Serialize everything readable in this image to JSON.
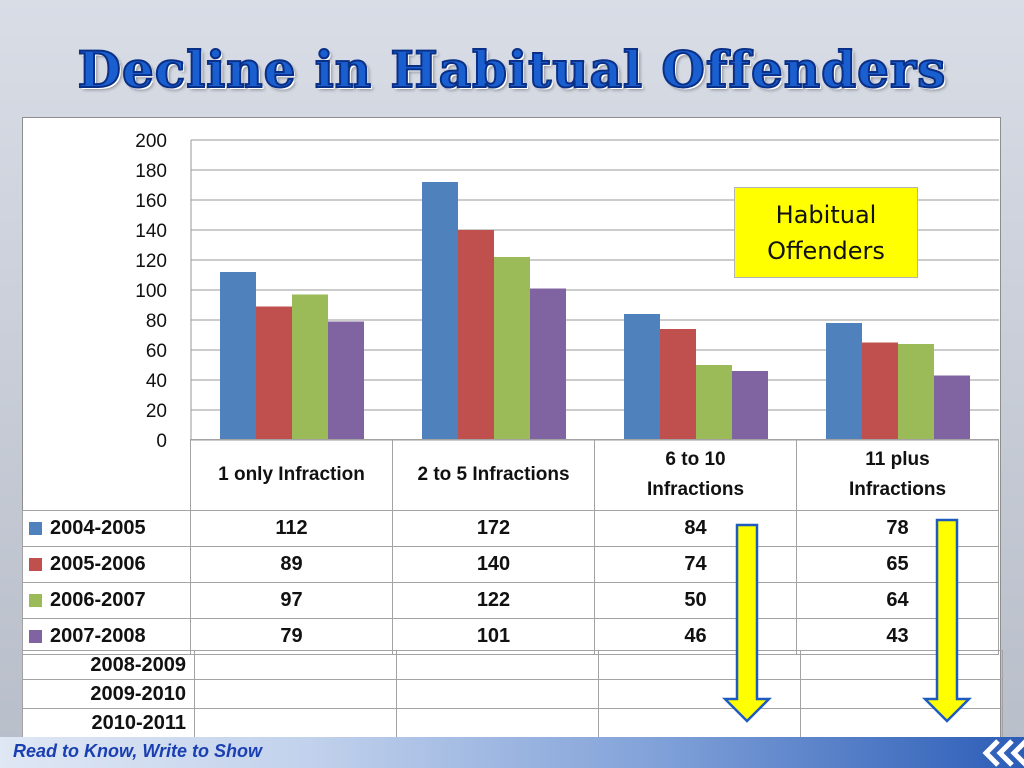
{
  "slide": {
    "title": "Decline in Habitual Offenders",
    "footer": "Read to Know, Write to Show"
  },
  "callout": {
    "line1": "Habitual",
    "line2": "Offenders"
  },
  "colors": {
    "title": "#1a5fd0",
    "callout_bg": "#ffff00",
    "arrow_fill": "#ffff00",
    "arrow_outline": "#1f5bbf",
    "footer_text": "#1a3fb0"
  },
  "icons": [
    "down-arrow-icon",
    "chevron-left-icon"
  ],
  "chart_data": {
    "type": "bar",
    "categories": [
      "1 only Infraction",
      "2 to 5 Infractions",
      "6 to 10 Infractions",
      "11 plus Infractions"
    ],
    "category_lines": [
      [
        "1 only Infraction"
      ],
      [
        "2 to 5 Infractions"
      ],
      [
        "6 to 10",
        "Infractions"
      ],
      [
        "11 plus",
        "Infractions"
      ]
    ],
    "series": [
      {
        "name": "2004-2005",
        "color": "#4f81bd",
        "values": [
          112,
          172,
          84,
          78
        ]
      },
      {
        "name": "2005-2006",
        "color": "#c0504d",
        "values": [
          89,
          140,
          74,
          65
        ]
      },
      {
        "name": "2006-2007",
        "color": "#9bbb59",
        "values": [
          97,
          122,
          50,
          64
        ]
      },
      {
        "name": "2007-2008",
        "color": "#8064a2",
        "values": [
          79,
          101,
          46,
          43
        ]
      }
    ],
    "extra_rows": [
      "2008-2009",
      "2009-2010",
      "2010-2011"
    ],
    "ylim": [
      0,
      200
    ],
    "yticks": [
      0,
      20,
      40,
      60,
      80,
      100,
      120,
      140,
      160,
      180,
      200
    ],
    "grid": true,
    "legend": "data-table"
  }
}
